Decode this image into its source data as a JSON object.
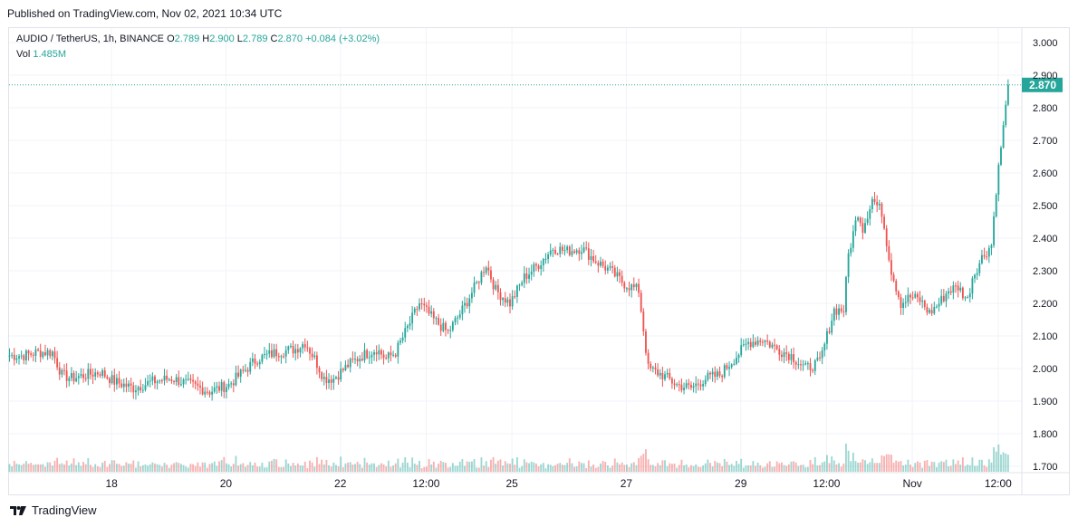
{
  "header": {
    "published": "Published on TradingView.com, Nov 02, 2021 10:34 UTC"
  },
  "legend": {
    "symbol": "AUDIO / TetherUS, 1h, BINANCE",
    "open_label": "O",
    "open": "2.789",
    "high_label": "H",
    "high": "2.900",
    "low_label": "L",
    "low": "2.789",
    "close_label": "C",
    "close": "2.870",
    "change": "+0.084 (+3.02%)",
    "vol_label": "Vol",
    "vol": "1.485M"
  },
  "footer": {
    "brand": "TradingView",
    "logo_icon": "tradingview-logo-icon"
  },
  "chart_data": {
    "type": "candlestick",
    "symbol": "AUDIO / TetherUS",
    "interval": "1h",
    "exchange": "BINANCE",
    "last_price": 2.87,
    "last_price_label": "2.870",
    "y_ticks": [
      "3.000",
      "2.900",
      "2.800",
      "2.700",
      "2.600",
      "2.500",
      "2.400",
      "2.300",
      "2.200",
      "2.100",
      "2.000",
      "1.900",
      "1.800",
      "1.700"
    ],
    "ylim": [
      1.67,
      3.04
    ],
    "x_ticks": [
      {
        "label": "18",
        "hours": 43
      },
      {
        "label": "20",
        "hours": 91
      },
      {
        "label": "22",
        "hours": 139
      },
      {
        "label": "12:00",
        "hours": 175
      },
      {
        "label": "25",
        "hours": 211
      },
      {
        "label": "27",
        "hours": 259
      },
      {
        "label": "29",
        "hours": 307
      },
      {
        "label": "12:00",
        "hours": 343
      },
      {
        "label": "Nov",
        "hours": 379
      },
      {
        "label": "12:00",
        "hours": 415
      }
    ],
    "price_path": [
      [
        0,
        2.04
      ],
      [
        6,
        2.04
      ],
      [
        12,
        2.05
      ],
      [
        18,
        2.05
      ],
      [
        22,
        1.98
      ],
      [
        26,
        1.97
      ],
      [
        32,
        1.98
      ],
      [
        38,
        1.99
      ],
      [
        44,
        1.96
      ],
      [
        52,
        1.94
      ],
      [
        60,
        1.96
      ],
      [
        68,
        1.97
      ],
      [
        76,
        1.95
      ],
      [
        84,
        1.93
      ],
      [
        92,
        1.95
      ],
      [
        98,
        1.99
      ],
      [
        104,
        2.03
      ],
      [
        112,
        2.05
      ],
      [
        120,
        2.06
      ],
      [
        124,
        2.08
      ],
      [
        128,
        2.03
      ],
      [
        132,
        1.97
      ],
      [
        136,
        1.97
      ],
      [
        142,
        2.01
      ],
      [
        148,
        2.04
      ],
      [
        154,
        2.06
      ],
      [
        158,
        2.03
      ],
      [
        162,
        2.05
      ],
      [
        168,
        2.14
      ],
      [
        172,
        2.2
      ],
      [
        178,
        2.15
      ],
      [
        184,
        2.11
      ],
      [
        190,
        2.18
      ],
      [
        196,
        2.26
      ],
      [
        200,
        2.32
      ],
      [
        204,
        2.24
      ],
      [
        210,
        2.2
      ],
      [
        216,
        2.28
      ],
      [
        222,
        2.32
      ],
      [
        228,
        2.37
      ],
      [
        234,
        2.36
      ],
      [
        240,
        2.37
      ],
      [
        246,
        2.33
      ],
      [
        252,
        2.3
      ],
      [
        258,
        2.26
      ],
      [
        264,
        2.24
      ],
      [
        266,
        2.12
      ],
      [
        268,
        2.0
      ],
      [
        274,
        1.98
      ],
      [
        280,
        1.95
      ],
      [
        286,
        1.94
      ],
      [
        292,
        1.97
      ],
      [
        298,
        1.98
      ],
      [
        304,
        2.03
      ],
      [
        310,
        2.08
      ],
      [
        316,
        2.09
      ],
      [
        322,
        2.06
      ],
      [
        328,
        2.04
      ],
      [
        334,
        2.0
      ],
      [
        340,
        2.02
      ],
      [
        346,
        2.18
      ],
      [
        350,
        2.18
      ],
      [
        352,
        2.35
      ],
      [
        356,
        2.48
      ],
      [
        358,
        2.43
      ],
      [
        362,
        2.52
      ],
      [
        366,
        2.48
      ],
      [
        370,
        2.3
      ],
      [
        374,
        2.2
      ],
      [
        378,
        2.22
      ],
      [
        382,
        2.21
      ],
      [
        386,
        2.17
      ],
      [
        390,
        2.2
      ],
      [
        394,
        2.24
      ],
      [
        398,
        2.25
      ],
      [
        402,
        2.21
      ],
      [
        404,
        2.28
      ],
      [
        408,
        2.34
      ],
      [
        412,
        2.38
      ],
      [
        414,
        2.55
      ],
      [
        416,
        2.68
      ],
      [
        418,
        2.8
      ],
      [
        419,
        2.87
      ]
    ],
    "total_hours": 420
  }
}
